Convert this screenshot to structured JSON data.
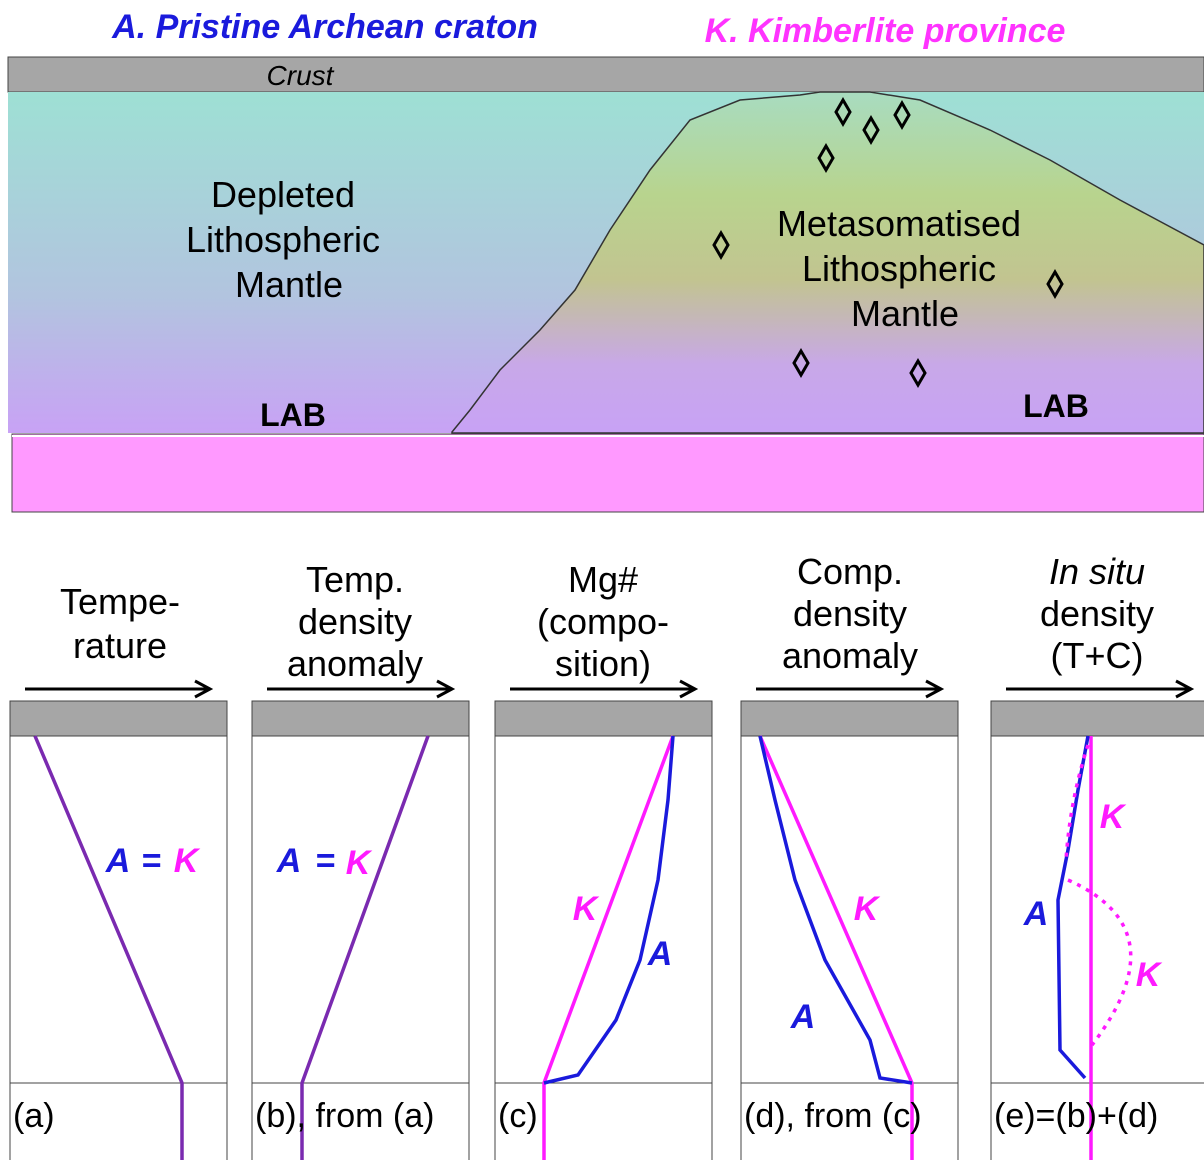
{
  "header": {
    "title_a": "A. Pristine Archean craton",
    "title_k": "K. Kimberlite province"
  },
  "section": {
    "crust": "Crust",
    "depleted": [
      "Depleted",
      "Lithospheric",
      "Mantle"
    ],
    "metasomatised": [
      "Metasomatised",
      "Lithospheric",
      "Mantle"
    ],
    "lab_left": "LAB",
    "lab_right": "LAB"
  },
  "panels": [
    {
      "header": [
        "Tempe-",
        "rature"
      ],
      "labels": [
        "A",
        "=",
        "K"
      ],
      "caption": "(a)"
    },
    {
      "header": [
        "Temp.",
        "density",
        "anomaly"
      ],
      "labels": [
        "A",
        "=",
        "K"
      ],
      "caption": "(b), from (a)"
    },
    {
      "header": [
        "Mg#",
        "(compo-",
        "sition)"
      ],
      "labels": [
        "K",
        "A"
      ],
      "caption": "(c)"
    },
    {
      "header": [
        "Comp.",
        "density",
        "anomaly"
      ],
      "labels": [
        "K",
        "A"
      ],
      "caption": "(d), from (c)"
    },
    {
      "header": [
        "In situ",
        "density",
        "(T+C)"
      ],
      "labels": [
        "K",
        "A",
        "K"
      ],
      "caption": "(e)=(b)+(d)"
    }
  ]
}
